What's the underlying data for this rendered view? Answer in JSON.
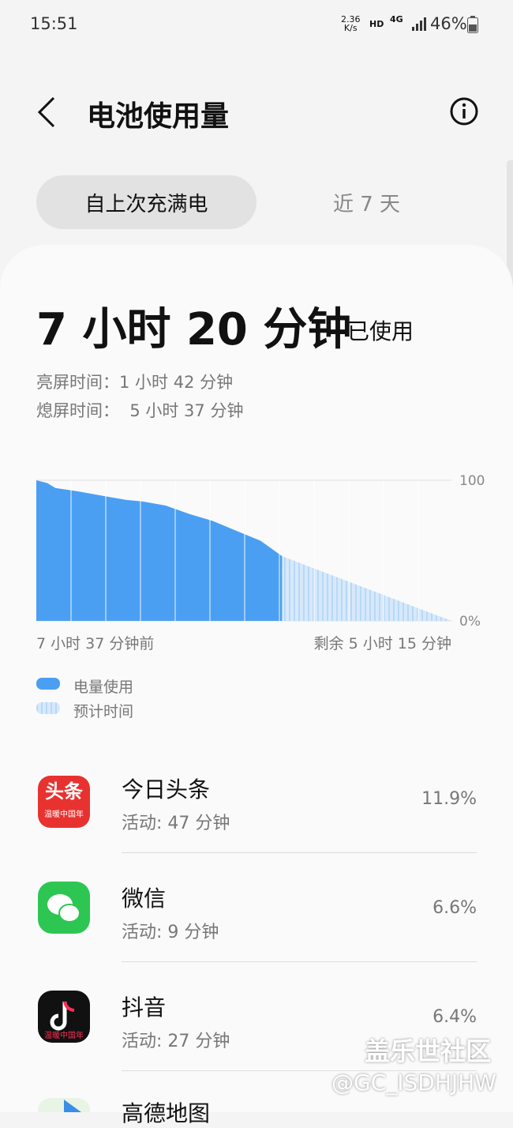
{
  "status_bar": {
    "time": "15:51",
    "net_speed": "2.36",
    "net_unit": "K/s",
    "hd": "HD",
    "network": "4G",
    "battery": "46%"
  },
  "header": {
    "title": "电池使用量"
  },
  "tabs": [
    "自上次充满电",
    "近 7 天"
  ],
  "summary": {
    "total": "7 小时 20 分钟",
    "total_suffix": "已使用",
    "screen_on": "亮屏时间：1 小时 42 分钟",
    "screen_off": "熄屏时间：  5 小时 37 分钟"
  },
  "chart_data": {
    "type": "area",
    "x": [
      -7.62,
      -7.28,
      -7.03,
      -6.3,
      -5.57,
      -4.83,
      -4.34,
      -3.61,
      -2.87,
      -2.14,
      -1.41,
      -0.67,
      0,
      5.25
    ],
    "series": [
      {
        "name": "电量使用",
        "color": "#4b9ff2",
        "values": [
          100,
          98,
          94.5,
          92,
          89,
          86,
          85,
          82,
          76,
          71,
          64,
          57,
          46,
          null
        ]
      },
      {
        "name": "预计时间",
        "color": "#c8e1f8",
        "values": [
          null,
          null,
          null,
          null,
          null,
          null,
          null,
          null,
          null,
          null,
          null,
          null,
          46,
          0
        ]
      }
    ],
    "xlim": [
      -7.62,
      5.25
    ],
    "ylim": [
      0,
      100
    ],
    "yticks": [
      {
        "value": 0,
        "label": "0%"
      },
      100
    ],
    "x_start_label": "7 小时 37 分钟前",
    "x_end_label": "剩余 5 小时 15 分钟"
  },
  "apps": [
    {
      "name": "今日头条",
      "activity": "活动: 47 分钟",
      "percent": "11.9%",
      "icon_text": "头条",
      "icon_caption": "温暖中国年"
    },
    {
      "name": "微信",
      "activity": "活动: 9 分钟",
      "percent": "6.6%"
    },
    {
      "name": "抖音",
      "activity": "活动: 27 分钟",
      "percent": "6.4%",
      "icon_caption": "温暖中国年"
    },
    {
      "name": "高德地图"
    }
  ],
  "watermark": {
    "site": "盖乐世社区",
    "user": "@GC_ISDHJHW"
  }
}
